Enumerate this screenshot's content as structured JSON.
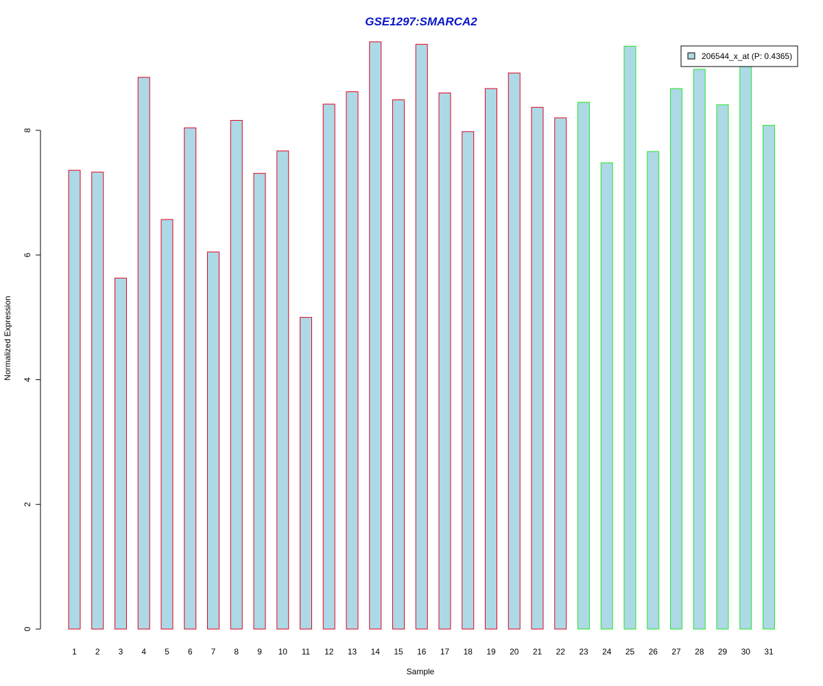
{
  "chart_data": {
    "type": "bar",
    "title": "GSE1297:SMARCA2",
    "xlabel": "Sample",
    "ylabel": "Normalized Expression",
    "ylim": [
      0,
      9.45
    ],
    "yticks": [
      0,
      2,
      4,
      6,
      8
    ],
    "grid": false,
    "legend_position": "top-right",
    "categories": [
      "1",
      "2",
      "3",
      "4",
      "5",
      "6",
      "7",
      "8",
      "9",
      "10",
      "11",
      "12",
      "13",
      "14",
      "15",
      "16",
      "17",
      "18",
      "19",
      "20",
      "21",
      "22",
      "23",
      "24",
      "25",
      "26",
      "27",
      "28",
      "29",
      "30",
      "31"
    ],
    "series": [
      {
        "name": "206544_x_at (P: 0.4365)",
        "values": [
          7.36,
          7.33,
          5.63,
          8.85,
          6.57,
          8.04,
          6.05,
          8.16,
          7.31,
          7.67,
          5.0,
          8.42,
          8.62,
          9.42,
          8.49,
          9.38,
          8.6,
          7.98,
          8.67,
          8.92,
          8.37,
          8.2,
          8.45,
          7.48,
          9.35,
          7.66,
          8.67,
          8.98,
          8.41,
          9.03,
          8.08
        ]
      }
    ],
    "group_border_colors": [
      "#e3001b",
      "#e3001b",
      "#e3001b",
      "#e3001b",
      "#e3001b",
      "#e3001b",
      "#e3001b",
      "#e3001b",
      "#e3001b",
      "#e3001b",
      "#e3001b",
      "#e3001b",
      "#e3001b",
      "#e3001b",
      "#e3001b",
      "#e3001b",
      "#e3001b",
      "#e3001b",
      "#e3001b",
      "#e3001b",
      "#e3001b",
      "#e3001b",
      "#22e622",
      "#22e622",
      "#22e622",
      "#22e622",
      "#22e622",
      "#22e622",
      "#22e622",
      "#22e622",
      "#22e622"
    ]
  },
  "colors": {
    "bar_fill": "#add8e6",
    "title": "#0a14c8",
    "axis": "#000000",
    "background": "#ffffff"
  }
}
